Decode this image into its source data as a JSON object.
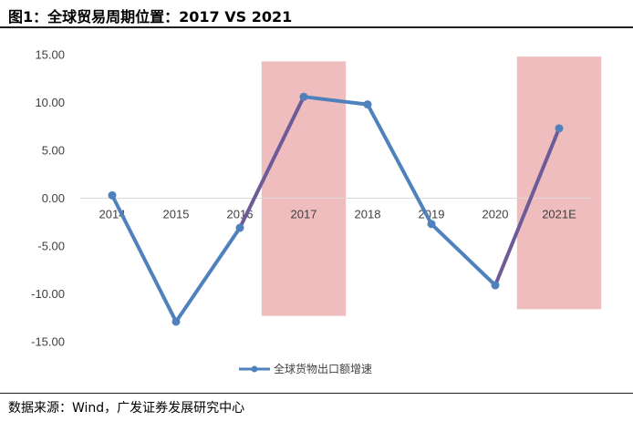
{
  "title": "图1：全球贸易周期位置：2017 VS 2021",
  "source": "数据来源：Wind，广发证券发展研究中心",
  "chart_data": {
    "type": "line",
    "categories": [
      "2014",
      "2015",
      "2016",
      "2017",
      "2018",
      "2019",
      "2020",
      "2021E"
    ],
    "series": [
      {
        "name": "全球货物出口额增速",
        "values": [
          0.3,
          -12.9,
          -3.1,
          10.6,
          9.8,
          -2.7,
          -9.1,
          7.3
        ]
      }
    ],
    "ylim": [
      -15,
      15
    ],
    "yticks": [
      "15.00",
      "10.00",
      "5.00",
      "0.00",
      "-5.00",
      "-10.00",
      "-15.00"
    ],
    "highlight_periods": [
      "2017",
      "2021E"
    ],
    "legend_position": "bottom",
    "line_color": "#4f81bd",
    "highlight_line_color": "#6d5b97",
    "highlight_fill_color": "#efbdbd"
  }
}
